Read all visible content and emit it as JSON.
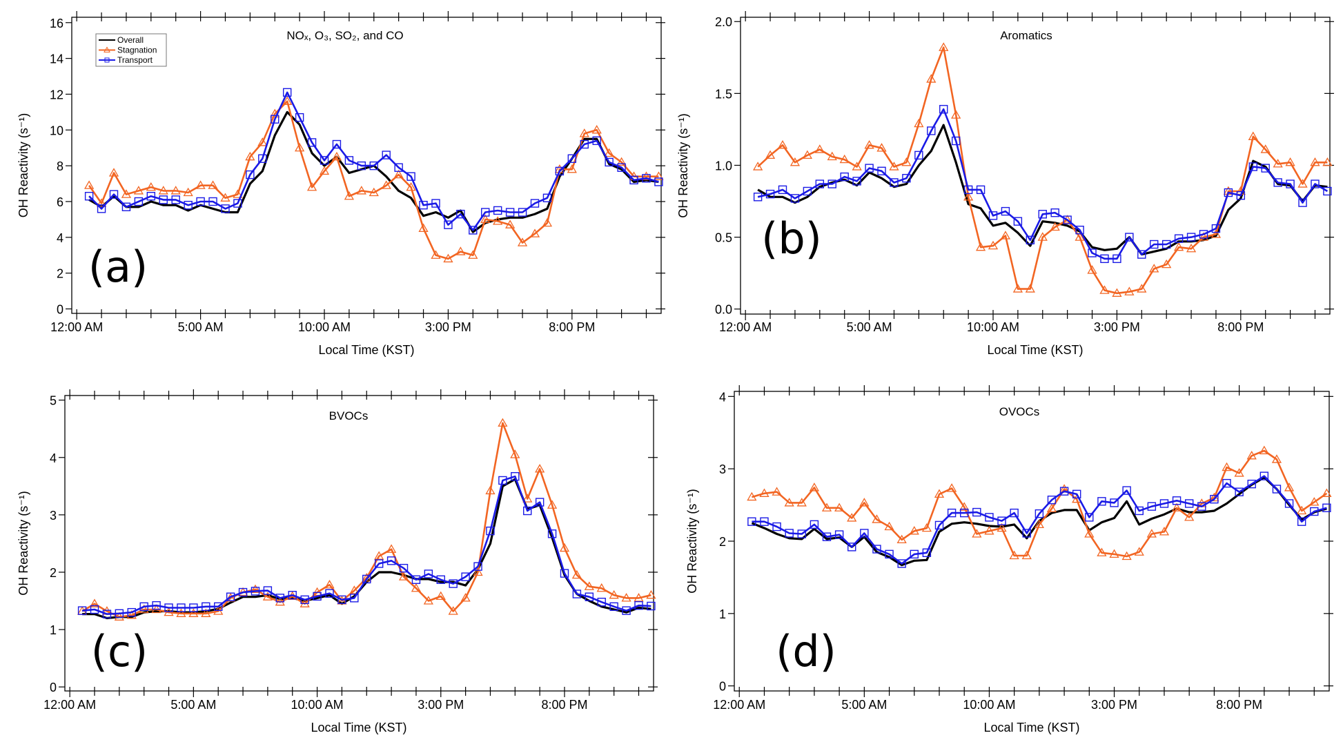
{
  "chart_data": [
    {
      "type": "line",
      "panel_label": "(a)",
      "title": "NOₓ, O₃, SO₂, and CO",
      "xlabel": "Local Time (KST)",
      "ylabel": "OH Reactivity (s⁻¹)",
      "xlim": [
        -0.2,
        23.6
      ],
      "ylim": [
        -0.25,
        16.3
      ],
      "xticks": [
        0,
        5,
        10,
        15,
        20
      ],
      "xtick_labels": [
        "12:00 AM",
        "5:00 AM",
        "10:00 AM",
        "3:00 PM",
        "8:00 PM"
      ],
      "yticks": [
        0,
        2,
        4,
        6,
        8,
        10,
        12,
        14,
        16
      ],
      "ytick_labels": [
        "0",
        "2",
        "4",
        "6",
        "8",
        "10",
        "12",
        "14",
        "16"
      ],
      "legend": {
        "placement": "top-left",
        "entries": [
          "Overall",
          "Stagnation",
          "Transport"
        ]
      },
      "x": [
        0.5,
        1,
        1.5,
        2,
        2.5,
        3,
        3.5,
        4,
        4.5,
        5,
        5.5,
        6,
        6.5,
        7,
        7.5,
        8,
        8.5,
        9,
        9.5,
        10,
        10.5,
        11,
        11.5,
        12,
        12.5,
        13,
        13.5,
        14,
        14.5,
        15,
        15.5,
        16,
        16.5,
        17,
        17.5,
        18,
        18.5,
        19,
        19.5,
        20,
        20.5,
        21,
        21.5,
        22,
        22.5,
        23,
        23.5
      ],
      "series": [
        {
          "name": "Overall",
          "color": "#000000",
          "marker": "none",
          "values": [
            6.1,
            5.7,
            6.3,
            5.7,
            5.7,
            6.0,
            5.8,
            5.8,
            5.5,
            5.8,
            5.6,
            5.4,
            5.4,
            7.0,
            7.7,
            9.7,
            11.0,
            10.3,
            8.7,
            8.0,
            8.5,
            7.6,
            7.8,
            8.0,
            7.4,
            6.6,
            6.2,
            5.2,
            5.4,
            5.1,
            5.5,
            4.3,
            4.8,
            5.0,
            5.1,
            5.1,
            5.3,
            5.6,
            7.4,
            8.4,
            9.5,
            9.5,
            8.1,
            7.8,
            7.1,
            7.2,
            7.1
          ]
        },
        {
          "name": "Stagnation",
          "color": "#f26522",
          "marker": "triangle",
          "values": [
            6.9,
            5.9,
            7.6,
            6.4,
            6.6,
            6.8,
            6.6,
            6.6,
            6.5,
            6.9,
            6.9,
            6.2,
            6.4,
            8.5,
            9.3,
            10.9,
            11.6,
            9.0,
            6.8,
            7.7,
            8.5,
            6.3,
            6.6,
            6.5,
            6.9,
            7.5,
            6.8,
            4.5,
            3.0,
            2.8,
            3.2,
            3.0,
            5.0,
            4.9,
            4.7,
            3.7,
            4.2,
            4.8,
            7.8,
            7.8,
            9.8,
            10.0,
            8.7,
            8.2,
            7.4,
            7.4,
            7.4
          ]
        },
        {
          "name": "Transport",
          "color": "#1a1ae6",
          "marker": "square",
          "values": [
            6.3,
            5.6,
            6.4,
            5.7,
            6.0,
            6.3,
            6.1,
            6.1,
            5.8,
            6.0,
            6.0,
            5.6,
            5.9,
            7.5,
            8.4,
            10.6,
            12.1,
            10.7,
            9.3,
            8.3,
            9.2,
            8.3,
            8.0,
            8.0,
            8.6,
            7.9,
            7.4,
            5.8,
            5.9,
            4.7,
            5.3,
            4.4,
            5.4,
            5.5,
            5.4,
            5.4,
            5.9,
            6.2,
            7.7,
            8.4,
            9.2,
            9.4,
            8.2,
            7.9,
            7.2,
            7.3,
            7.1
          ]
        }
      ]
    },
    {
      "type": "line",
      "panel_label": "(b)",
      "title": "Aromatics",
      "xlabel": "Local Time (KST)",
      "ylabel": "OH Reactivity (s⁻¹)",
      "xlim": [
        -0.2,
        23.6
      ],
      "ylim": [
        -0.035,
        2.03
      ],
      "xticks": [
        0,
        5,
        10,
        15,
        20
      ],
      "xtick_labels": [
        "12:00 AM",
        "5:00 AM",
        "10:00 AM",
        "3:00 PM",
        "8:00 PM"
      ],
      "yticks": [
        0,
        0.5,
        1,
        1.5,
        2
      ],
      "ytick_labels": [
        "0.0",
        "0.5",
        "1.0",
        "1.5",
        "2.0"
      ],
      "x": [
        0.5,
        1,
        1.5,
        2,
        2.5,
        3,
        3.5,
        4,
        4.5,
        5,
        5.5,
        6,
        6.5,
        7,
        7.5,
        8,
        8.5,
        9,
        9.5,
        10,
        10.5,
        11,
        11.5,
        12,
        12.5,
        13,
        13.5,
        14,
        14.5,
        15,
        15.5,
        16,
        16.5,
        17,
        17.5,
        18,
        18.5,
        19,
        19.5,
        20,
        20.5,
        21,
        21.5,
        22,
        22.5,
        23,
        23.5
      ],
      "series": [
        {
          "name": "Overall",
          "color": "#000000",
          "marker": "none",
          "values": [
            0.83,
            0.78,
            0.78,
            0.74,
            0.78,
            0.85,
            0.88,
            0.9,
            0.86,
            0.95,
            0.91,
            0.85,
            0.87,
            1.0,
            1.1,
            1.28,
            1.02,
            0.73,
            0.7,
            0.58,
            0.6,
            0.53,
            0.44,
            0.61,
            0.6,
            0.58,
            0.54,
            0.43,
            0.41,
            0.42,
            0.5,
            0.38,
            0.4,
            0.42,
            0.47,
            0.47,
            0.48,
            0.51,
            0.69,
            0.77,
            1.03,
            0.99,
            0.87,
            0.86,
            0.75,
            0.86,
            0.85
          ]
        },
        {
          "name": "Stagnation",
          "color": "#f26522",
          "marker": "triangle",
          "values": [
            0.99,
            1.07,
            1.14,
            1.02,
            1.07,
            1.11,
            1.06,
            1.04,
            0.99,
            1.14,
            1.12,
            0.99,
            1.02,
            1.29,
            1.6,
            1.82,
            1.35,
            0.78,
            0.43,
            0.44,
            0.51,
            0.14,
            0.14,
            0.5,
            0.57,
            0.62,
            0.5,
            0.27,
            0.13,
            0.11,
            0.12,
            0.14,
            0.28,
            0.31,
            0.43,
            0.42,
            0.5,
            0.52,
            0.82,
            0.82,
            1.2,
            1.11,
            1.01,
            1.02,
            0.87,
            1.02,
            1.02
          ]
        },
        {
          "name": "Transport",
          "color": "#1a1ae6",
          "marker": "square",
          "values": [
            0.78,
            0.8,
            0.83,
            0.77,
            0.82,
            0.87,
            0.87,
            0.92,
            0.89,
            0.98,
            0.96,
            0.88,
            0.91,
            1.07,
            1.24,
            1.39,
            1.17,
            0.83,
            0.83,
            0.65,
            0.68,
            0.61,
            0.48,
            0.66,
            0.67,
            0.62,
            0.55,
            0.39,
            0.35,
            0.35,
            0.5,
            0.38,
            0.45,
            0.45,
            0.49,
            0.5,
            0.52,
            0.56,
            0.81,
            0.79,
            0.99,
            0.98,
            0.88,
            0.87,
            0.74,
            0.87,
            0.82
          ]
        }
      ]
    },
    {
      "type": "line",
      "panel_label": "(c)",
      "title": "BVOCs",
      "xlabel": "Local Time (KST)",
      "ylabel": "OH Reactivity (s⁻¹)",
      "xlim": [
        -0.2,
        23.6
      ],
      "ylim": [
        -0.07,
        5.08
      ],
      "xticks": [
        0,
        5,
        10,
        15,
        20
      ],
      "xtick_labels": [
        "12:00 AM",
        "5:00 AM",
        "10:00 AM",
        "3:00 PM",
        "8:00 PM"
      ],
      "yticks": [
        0,
        1,
        2,
        3,
        4,
        5
      ],
      "ytick_labels": [
        "0",
        "1",
        "2",
        "3",
        "4",
        "5"
      ],
      "x": [
        0.5,
        1,
        1.5,
        2,
        2.5,
        3,
        3.5,
        4,
        4.5,
        5,
        5.5,
        6,
        6.5,
        7,
        7.5,
        8,
        8.5,
        9,
        9.5,
        10,
        10.5,
        11,
        11.5,
        12,
        12.5,
        13,
        13.5,
        14,
        14.5,
        15,
        15.5,
        16,
        16.5,
        17,
        17.5,
        18,
        18.5,
        19,
        19.5,
        20,
        20.5,
        21,
        21.5,
        22,
        22.5,
        23,
        23.5
      ],
      "series": [
        {
          "name": "Overall",
          "color": "#000000",
          "marker": "none",
          "values": [
            1.27,
            1.27,
            1.2,
            1.22,
            1.22,
            1.3,
            1.32,
            1.32,
            1.3,
            1.3,
            1.32,
            1.36,
            1.47,
            1.57,
            1.57,
            1.6,
            1.53,
            1.55,
            1.5,
            1.55,
            1.6,
            1.45,
            1.58,
            1.83,
            2.0,
            2.0,
            1.95,
            1.88,
            1.88,
            1.83,
            1.83,
            1.77,
            2.05,
            2.5,
            3.5,
            3.62,
            3.1,
            3.17,
            2.6,
            1.95,
            1.62,
            1.5,
            1.4,
            1.35,
            1.3,
            1.38,
            1.36
          ]
        },
        {
          "name": "Stagnation",
          "color": "#f26522",
          "marker": "triangle",
          "values": [
            1.32,
            1.45,
            1.32,
            1.22,
            1.25,
            1.35,
            1.35,
            1.3,
            1.28,
            1.28,
            1.28,
            1.32,
            1.55,
            1.65,
            1.7,
            1.57,
            1.48,
            1.58,
            1.45,
            1.65,
            1.78,
            1.5,
            1.68,
            1.9,
            2.28,
            2.4,
            1.92,
            1.72,
            1.5,
            1.58,
            1.32,
            1.55,
            2.0,
            3.42,
            4.6,
            4.05,
            3.28,
            3.8,
            3.17,
            2.42,
            1.95,
            1.75,
            1.72,
            1.6,
            1.55,
            1.55,
            1.6
          ]
        },
        {
          "name": "Transport",
          "color": "#1a1ae6",
          "marker": "square",
          "values": [
            1.33,
            1.35,
            1.27,
            1.28,
            1.3,
            1.4,
            1.42,
            1.38,
            1.38,
            1.38,
            1.4,
            1.4,
            1.57,
            1.65,
            1.67,
            1.68,
            1.55,
            1.6,
            1.52,
            1.58,
            1.63,
            1.52,
            1.55,
            1.88,
            2.15,
            2.2,
            2.07,
            1.87,
            1.97,
            1.87,
            1.8,
            1.92,
            2.1,
            2.72,
            3.6,
            3.67,
            3.07,
            3.22,
            2.67,
            1.98,
            1.62,
            1.57,
            1.48,
            1.4,
            1.33,
            1.42,
            1.41
          ]
        }
      ]
    },
    {
      "type": "line",
      "panel_label": "(d)",
      "title": "OVOCs",
      "xlabel": "Local Time (KST)",
      "ylabel": "OH Reactivity (s⁻¹)",
      "xlim": [
        -0.2,
        23.6
      ],
      "ylim": [
        -0.07,
        4.07
      ],
      "xticks": [
        0,
        5,
        10,
        15,
        20
      ],
      "xtick_labels": [
        "12:00 AM",
        "5:00 AM",
        "10:00 AM",
        "3:00 PM",
        "8:00 PM"
      ],
      "yticks": [
        0,
        1,
        2,
        3,
        4
      ],
      "ytick_labels": [
        "0",
        "1",
        "2",
        "3",
        "4"
      ],
      "x": [
        0.5,
        1,
        1.5,
        2,
        2.5,
        3,
        3.5,
        4,
        4.5,
        5,
        5.5,
        6,
        6.5,
        7,
        7.5,
        8,
        8.5,
        9,
        9.5,
        10,
        10.5,
        11,
        11.5,
        12,
        12.5,
        13,
        13.5,
        14,
        14.5,
        15,
        15.5,
        16,
        16.5,
        17,
        17.5,
        18,
        18.5,
        19,
        19.5,
        20,
        20.5,
        21,
        21.5,
        22,
        22.5,
        23,
        23.5
      ],
      "series": [
        {
          "name": "Overall",
          "color": "#000000",
          "marker": "none",
          "values": [
            2.25,
            2.18,
            2.1,
            2.04,
            2.03,
            2.17,
            2.03,
            2.05,
            1.92,
            2.06,
            1.85,
            1.78,
            1.67,
            1.73,
            1.74,
            2.13,
            2.24,
            2.26,
            2.24,
            2.21,
            2.2,
            2.23,
            2.04,
            2.28,
            2.39,
            2.43,
            2.43,
            2.15,
            2.26,
            2.32,
            2.55,
            2.23,
            2.31,
            2.37,
            2.45,
            2.4,
            2.4,
            2.42,
            2.52,
            2.65,
            2.78,
            2.88,
            2.72,
            2.5,
            2.3,
            2.4,
            2.45
          ]
        },
        {
          "name": "Stagnation",
          "color": "#f26522",
          "marker": "triangle",
          "values": [
            2.61,
            2.66,
            2.68,
            2.53,
            2.53,
            2.74,
            2.46,
            2.46,
            2.32,
            2.53,
            2.3,
            2.2,
            2.02,
            2.14,
            2.18,
            2.65,
            2.73,
            2.47,
            2.1,
            2.14,
            2.18,
            1.8,
            1.8,
            2.23,
            2.45,
            2.72,
            2.58,
            2.1,
            1.84,
            1.82,
            1.79,
            1.85,
            2.1,
            2.13,
            2.46,
            2.33,
            2.52,
            2.6,
            3.02,
            2.94,
            3.18,
            3.25,
            3.13,
            2.74,
            2.42,
            2.54,
            2.66
          ]
        },
        {
          "name": "Transport",
          "color": "#1a1ae6",
          "marker": "square",
          "values": [
            2.27,
            2.27,
            2.2,
            2.11,
            2.1,
            2.23,
            2.06,
            2.09,
            1.92,
            2.11,
            1.89,
            1.82,
            1.69,
            1.82,
            1.84,
            2.22,
            2.39,
            2.39,
            2.4,
            2.33,
            2.28,
            2.39,
            2.11,
            2.38,
            2.57,
            2.69,
            2.65,
            2.33,
            2.55,
            2.53,
            2.7,
            2.42,
            2.48,
            2.52,
            2.56,
            2.52,
            2.48,
            2.58,
            2.8,
            2.68,
            2.79,
            2.9,
            2.72,
            2.52,
            2.27,
            2.41,
            2.46
          ]
        }
      ]
    }
  ]
}
